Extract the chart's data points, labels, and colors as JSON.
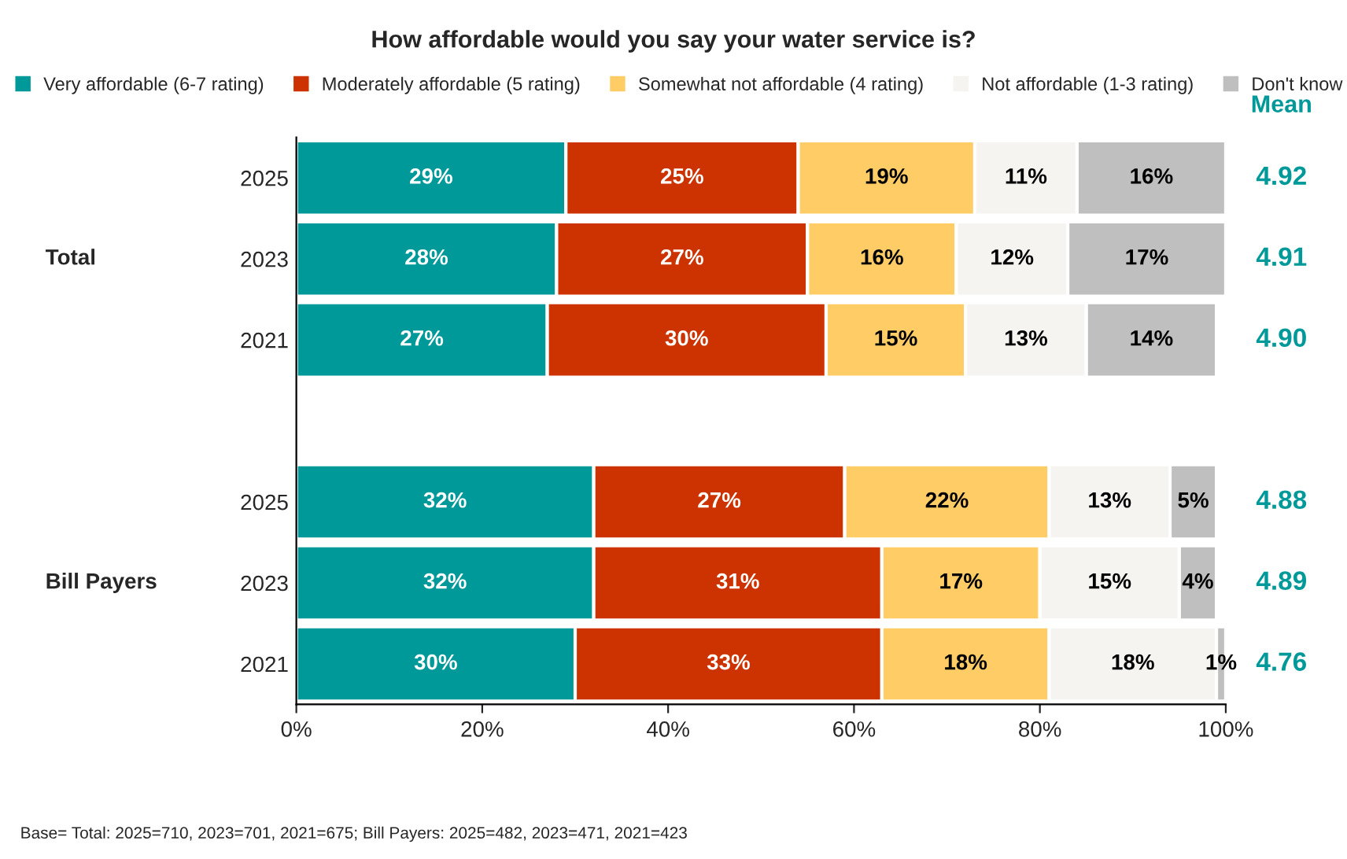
{
  "chart_data": {
    "type": "bar",
    "orientation": "horizontal",
    "stacked": true,
    "title": "How affordable would you say your water service is?",
    "categories": [
      "2025",
      "2023",
      "2021",
      null,
      "2025",
      "2023",
      "2021"
    ],
    "series": [
      {
        "name": "Very affordable (6-7 rating)",
        "color": "#009999",
        "values": [
          29,
          28,
          27,
          null,
          32,
          32,
          30
        ],
        "value_labels": [
          "29%",
          "28%",
          "27%",
          null,
          "32%",
          "32%",
          "30%"
        ]
      },
      {
        "name": "Moderately affordable (5 rating)",
        "color": "#cc3300",
        "values": [
          25,
          27,
          30,
          null,
          27,
          31,
          33
        ],
        "value_labels": [
          "25%",
          "27%",
          "30%",
          null,
          "27%",
          "31%",
          "33%"
        ]
      },
      {
        "name": "Somewhat not affordable (4 rating)",
        "color": "#ffcc66",
        "values": [
          19,
          16,
          15,
          null,
          22,
          17,
          18
        ],
        "value_labels": [
          "19%",
          "16%",
          "15%",
          null,
          "22%",
          "17%",
          "18%"
        ]
      },
      {
        "name": "Not affordable (1-3 rating)",
        "color": "#f5f4f0",
        "values": [
          11,
          12,
          13,
          null,
          13,
          15,
          18
        ],
        "value_labels": [
          "11%",
          "12%",
          "13%",
          null,
          "13%",
          "15%",
          "18%"
        ]
      },
      {
        "name": "Don't know",
        "color": "#bfbfbf",
        "values": [
          16,
          17,
          14,
          null,
          5,
          4,
          1
        ],
        "value_labels": [
          "16%",
          "17%",
          "14%",
          null,
          "5%",
          "4%",
          "1%"
        ]
      }
    ],
    "xlim": [
      0,
      100
    ],
    "xticks": [
      {
        "value": 0,
        "label": "0%"
      },
      {
        "value": 20,
        "label": "20%"
      },
      {
        "value": 40,
        "label": "40%"
      },
      {
        "value": 60,
        "label": "60%"
      },
      {
        "value": 80,
        "label": "80%"
      },
      {
        "value": 100,
        "label": "100%"
      }
    ],
    "legend": "top",
    "annotations": [
      "Total",
      "Bill Payers",
      "Mean",
      "4.92",
      "4.91",
      "4.90",
      "4.88",
      "4.89",
      "4.76",
      "Base= Total: 2025=710, 2023=701, 2021=675; Bill Payers: 2025=482, 2023=471, 2021=423"
    ]
  }
}
